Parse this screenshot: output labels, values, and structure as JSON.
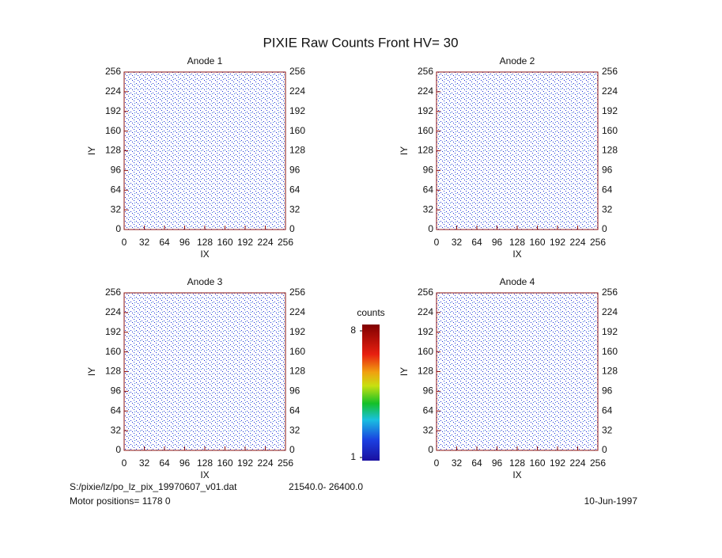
{
  "title": "PIXIE Raw Counts Front HV= 30",
  "chart_data": [
    {
      "type": "heatmap",
      "title": "Anode 1",
      "xlabel": "IX",
      "ylabel": "IY",
      "xlim": [
        0,
        256
      ],
      "ylim": [
        0,
        256
      ],
      "xticks": [
        0,
        32,
        64,
        96,
        128,
        160,
        192,
        224,
        256
      ],
      "yticks": [
        0,
        32,
        64,
        96,
        128,
        160,
        192,
        224,
        256
      ]
    },
    {
      "type": "heatmap",
      "title": "Anode 2",
      "xlabel": "IX",
      "ylabel": "IY",
      "xlim": [
        0,
        256
      ],
      "ylim": [
        0,
        256
      ],
      "xticks": [
        0,
        32,
        64,
        96,
        128,
        160,
        192,
        224,
        256
      ],
      "yticks": [
        0,
        32,
        64,
        96,
        128,
        160,
        192,
        224,
        256
      ]
    },
    {
      "type": "heatmap",
      "title": "Anode 3",
      "xlabel": "IX",
      "ylabel": "IY",
      "xlim": [
        0,
        256
      ],
      "ylim": [
        0,
        256
      ],
      "xticks": [
        0,
        32,
        64,
        96,
        128,
        160,
        192,
        224,
        256
      ],
      "yticks": [
        0,
        32,
        64,
        96,
        128,
        160,
        192,
        224,
        256
      ]
    },
    {
      "type": "heatmap",
      "title": "Anode 4",
      "xlabel": "IX",
      "ylabel": "IY",
      "xlim": [
        0,
        256
      ],
      "ylim": [
        0,
        256
      ],
      "xticks": [
        0,
        32,
        64,
        96,
        128,
        160,
        192,
        224,
        256
      ],
      "yticks": [
        0,
        32,
        64,
        96,
        128,
        160,
        192,
        224,
        256
      ]
    }
  ],
  "colorbar": {
    "label": "counts",
    "lim": [
      1,
      8
    ],
    "ticks": [
      1,
      8
    ]
  },
  "footer": {
    "file": "S:/pixie/lz/po_lz_pix_19970607_v01.dat",
    "range": "21540.0- 26400.0",
    "motor": "Motor positions= 1178 0",
    "date": "10-Jun-1997"
  }
}
